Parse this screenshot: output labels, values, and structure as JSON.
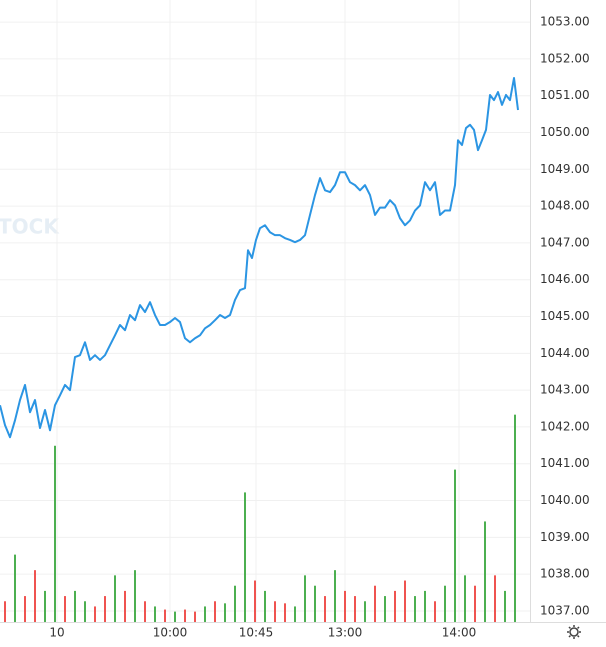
{
  "chart_data": {
    "type": "line",
    "watermark": "TOCK",
    "color": "#2b95e3",
    "grid": true,
    "xlim": [
      0,
      106
    ],
    "xticks": [
      {
        "value": 11.4,
        "label": "10"
      },
      {
        "value": 34,
        "label": "10:00"
      },
      {
        "value": 51.2,
        "label": "10:45"
      },
      {
        "value": 69,
        "label": "13:00"
      },
      {
        "value": 91.8,
        "label": "14:00"
      }
    ],
    "ylim": [
      1036.7,
      1053.6
    ],
    "yticks": [
      {
        "value": 1037,
        "label": "1037.00"
      },
      {
        "value": 1038,
        "label": "1038.00"
      },
      {
        "value": 1039,
        "label": "1039.00"
      },
      {
        "value": 1040,
        "label": "1040.00"
      },
      {
        "value": 1041,
        "label": "1041.00"
      },
      {
        "value": 1042,
        "label": "1042.00"
      },
      {
        "value": 1043,
        "label": "1043.00"
      },
      {
        "value": 1044,
        "label": "1044.00"
      },
      {
        "value": 1045,
        "label": "1045.00"
      },
      {
        "value": 1046,
        "label": "1046.00"
      },
      {
        "value": 1047,
        "label": "1047.00"
      },
      {
        "value": 1048,
        "label": "1048.00"
      },
      {
        "value": 1049,
        "label": "1049.00"
      },
      {
        "value": 1050,
        "label": "1050.00"
      },
      {
        "value": 1051,
        "label": "1051.00"
      },
      {
        "value": 1052,
        "label": "1052.00"
      },
      {
        "value": 1053,
        "label": "1053.00"
      }
    ],
    "x": [
      0,
      1,
      2,
      3,
      4,
      5,
      6,
      7,
      8,
      9,
      10,
      11,
      12,
      13,
      14,
      15,
      16,
      17,
      18,
      19,
      20,
      21,
      22,
      23,
      24,
      25,
      26,
      27,
      28,
      29,
      30,
      31,
      32,
      33,
      34,
      35,
      36,
      37,
      38,
      39,
      40,
      41,
      42,
      43,
      44,
      45,
      46,
      47,
      48,
      49,
      49.6,
      50.4,
      51.2,
      52,
      53,
      54,
      55,
      56,
      57,
      58,
      59,
      60,
      61,
      62,
      63,
      64,
      65,
      66,
      67,
      68,
      69,
      70,
      71,
      72,
      73,
      74,
      75,
      76,
      77,
      78,
      79,
      80,
      81,
      82,
      83,
      84,
      85,
      86,
      87,
      88,
      89,
      90,
      91,
      91.6,
      92.4,
      93.2,
      94,
      94.8,
      95.6,
      96.4,
      97.2,
      98,
      98.8,
      99.6,
      100.4,
      101.2,
      102,
      102.8,
      103.6
    ],
    "values": [
      1042.59,
      1042.05,
      1041.72,
      1042.18,
      1042.73,
      1043.14,
      1042.4,
      1042.73,
      1041.97,
      1042.46,
      1041.91,
      1042.59,
      1042.86,
      1043.14,
      1043.0,
      1043.9,
      1043.95,
      1044.3,
      1043.82,
      1043.95,
      1043.82,
      1043.95,
      1044.22,
      1044.49,
      1044.77,
      1044.63,
      1045.04,
      1044.9,
      1045.31,
      1045.12,
      1045.39,
      1045.04,
      1044.77,
      1044.77,
      1044.85,
      1044.96,
      1044.85,
      1044.41,
      1044.3,
      1044.41,
      1044.49,
      1044.68,
      1044.77,
      1044.9,
      1045.04,
      1044.96,
      1045.04,
      1045.45,
      1045.72,
      1045.77,
      1046.8,
      1046.59,
      1047.08,
      1047.4,
      1047.48,
      1047.29,
      1047.21,
      1047.21,
      1047.13,
      1047.08,
      1047.02,
      1047.08,
      1047.21,
      1047.76,
      1048.3,
      1048.76,
      1048.43,
      1048.38,
      1048.57,
      1048.92,
      1048.92,
      1048.65,
      1048.57,
      1048.43,
      1048.57,
      1048.3,
      1047.76,
      1047.96,
      1047.96,
      1048.16,
      1048.02,
      1047.67,
      1047.48,
      1047.61,
      1047.88,
      1048.02,
      1048.65,
      1048.43,
      1048.65,
      1047.76,
      1047.88,
      1047.88,
      1048.57,
      1049.79,
      1049.66,
      1050.12,
      1050.21,
      1050.07,
      1049.52,
      1049.79,
      1050.07,
      1051.02,
      1050.88,
      1051.1,
      1050.75,
      1051.02,
      1050.88,
      1051.48,
      1050.61
    ],
    "volume": {
      "vlim": [
        0,
        600
      ],
      "x": [
        1,
        3,
        5,
        7,
        9,
        11,
        13,
        15,
        17,
        19,
        21,
        23,
        25,
        27,
        29,
        31,
        33,
        35,
        37,
        39,
        41,
        43,
        45,
        47,
        49,
        51,
        53,
        55,
        57,
        59,
        61,
        63,
        65,
        67,
        69,
        71,
        73,
        75,
        77,
        79,
        81,
        83,
        85,
        87,
        89,
        91,
        93,
        95,
        97,
        99,
        101,
        103
      ],
      "values": [
        20,
        65,
        25,
        50,
        30,
        170,
        25,
        30,
        20,
        15,
        25,
        45,
        30,
        50,
        20,
        15,
        12,
        10,
        12,
        10,
        15,
        20,
        18,
        35,
        125,
        40,
        30,
        20,
        18,
        15,
        45,
        35,
        25,
        50,
        30,
        25,
        20,
        35,
        25,
        30,
        40,
        25,
        30,
        20,
        35,
        147,
        45,
        35,
        97,
        45,
        30,
        200
      ],
      "colors": [
        "#ef5350",
        "#4caf50",
        "#ef5350",
        "#ef5350",
        "#4caf50",
        "#4caf50",
        "#ef5350",
        "#4caf50",
        "#4caf50",
        "#ef5350",
        "#ef5350",
        "#4caf50",
        "#ef5350",
        "#4caf50",
        "#ef5350",
        "#4caf50",
        "#ef5350",
        "#4caf50",
        "#ef5350",
        "#ef5350",
        "#4caf50",
        "#ef5350",
        "#4caf50",
        "#4caf50",
        "#4caf50",
        "#ef5350",
        "#4caf50",
        "#ef5350",
        "#ef5350",
        "#4caf50",
        "#4caf50",
        "#4caf50",
        "#ef5350",
        "#4caf50",
        "#ef5350",
        "#ef5350",
        "#4caf50",
        "#ef5350",
        "#4caf50",
        "#ef5350",
        "#ef5350",
        "#4caf50",
        "#4caf50",
        "#ef5350",
        "#4caf50",
        "#4caf50",
        "#4caf50",
        "#ef5350",
        "#4caf50",
        "#ef5350",
        "#4caf50",
        "#4caf50"
      ]
    }
  }
}
